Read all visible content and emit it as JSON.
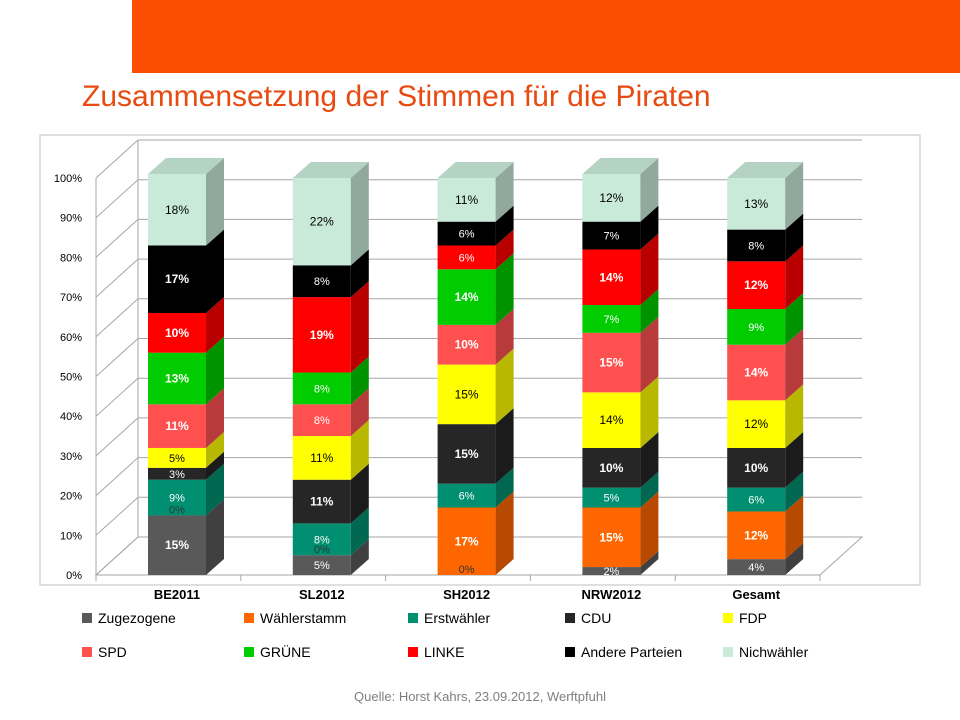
{
  "page": {
    "title": "Zusammensetzung der Stimmen für die Piraten",
    "source": "Quelle: Horst Kahrs, 23.09.2012, Werftpfuhl",
    "colors": {
      "accent": "#fc4e00",
      "title": "#e84a10"
    }
  },
  "chart_data": {
    "type": "bar",
    "stacked": true,
    "three_d": true,
    "percent_stacked": true,
    "ylim": [
      0,
      100
    ],
    "yticks": [
      "0%",
      "10%",
      "20%",
      "30%",
      "40%",
      "50%",
      "60%",
      "70%",
      "80%",
      "90%",
      "100%"
    ],
    "grid": true,
    "legend_position": "bottom",
    "categories": [
      "BE2011",
      "SL2012",
      "SH2012",
      "NRW2012",
      "Gesamt"
    ],
    "series": [
      {
        "name": "Zugezogene",
        "color": "#595959",
        "values": [
          15,
          5,
          0,
          2,
          4
        ],
        "labels": [
          "15%",
          "5%",
          "0%",
          "2%",
          "4%"
        ]
      },
      {
        "name": "Wählerstamm",
        "color": "#fe6600",
        "values": [
          0,
          0,
          17,
          15,
          12
        ],
        "labels": [
          "0%",
          "0%",
          "17%",
          "15%",
          "12%"
        ]
      },
      {
        "name": "Erstwähler",
        "color": "#008f70",
        "values": [
          9,
          8,
          6,
          5,
          6
        ],
        "labels": [
          "9%",
          "8%",
          "6%",
          "5%",
          "6%"
        ]
      },
      {
        "name": "CDU",
        "color": "#262626",
        "values": [
          3,
          11,
          15,
          10,
          10
        ],
        "labels": [
          "3%",
          "11%",
          "15%",
          "10%",
          "10%"
        ]
      },
      {
        "name": "FDP",
        "color": "#ffff00",
        "values": [
          5,
          11,
          15,
          14,
          12
        ],
        "labels": [
          "5%",
          "11%",
          "15%",
          "14%",
          "12%"
        ]
      },
      {
        "name": "SPD",
        "color": "#ff5050",
        "values": [
          11,
          8,
          10,
          15,
          14
        ],
        "labels": [
          "11%",
          "8%",
          "10%",
          "15%",
          "14%"
        ]
      },
      {
        "name": "GRÜNE",
        "color": "#00cc00",
        "values": [
          13,
          8,
          14,
          7,
          9
        ],
        "labels": [
          "13%",
          "8%",
          "14%",
          "7%",
          "9%"
        ]
      },
      {
        "name": "LINKE",
        "color": "#ff0000",
        "values": [
          10,
          19,
          6,
          14,
          12
        ],
        "labels": [
          "10%",
          "19%",
          "6%",
          "14%",
          "12%"
        ]
      },
      {
        "name": "Andere Parteien",
        "color": "#000000",
        "values": [
          17,
          8,
          6,
          7,
          8
        ],
        "labels": [
          "17%",
          "8%",
          "6%",
          "7%",
          "8%"
        ]
      },
      {
        "name": "Nichwähler",
        "color": "#c9ead9",
        "values": [
          18,
          22,
          11,
          12,
          13
        ],
        "labels": [
          "18%",
          "22%",
          "11%",
          "12%",
          "13%"
        ]
      }
    ]
  }
}
